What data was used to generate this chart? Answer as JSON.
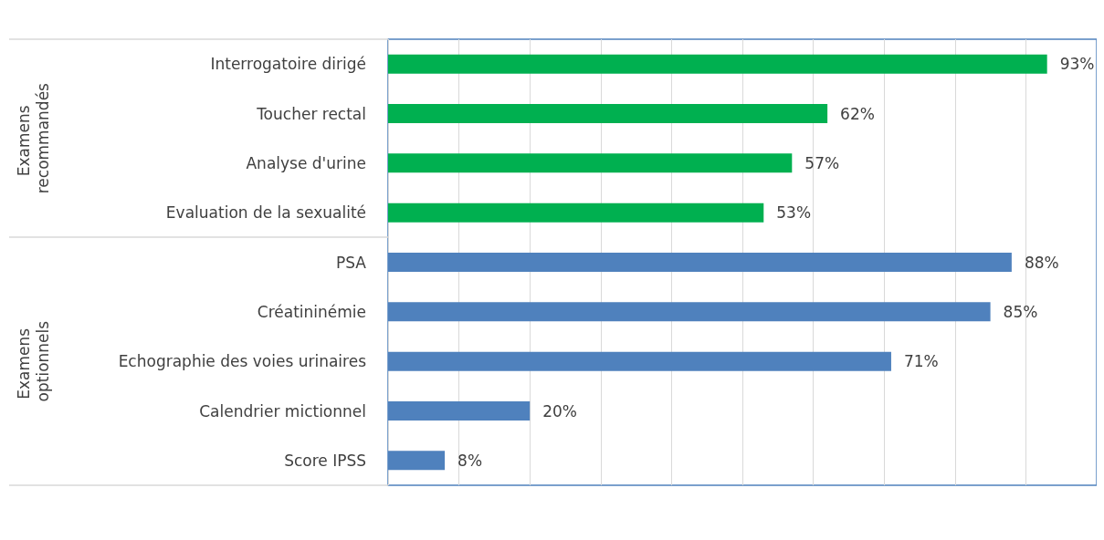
{
  "chart_data": {
    "type": "bar",
    "orientation": "horizontal",
    "categories": [
      "Interrogatoire dirigé",
      "Toucher rectal",
      "Analyse d'urine",
      "Evaluation de la sexualité",
      "PSA",
      "Créatininémie",
      "Echographie des voies urinaires",
      "Calendrier mictionnel",
      "Score IPSS"
    ],
    "series": [
      {
        "color": "#00b050",
        "values": [
          93,
          62,
          57,
          53,
          null,
          null,
          null,
          null,
          null
        ],
        "value_labels": [
          "93%",
          "62%",
          "57%",
          "53%",
          null,
          null,
          null,
          null,
          null
        ]
      },
      {
        "color": "#4f81bd",
        "values": [
          null,
          null,
          null,
          null,
          88,
          85,
          71,
          20,
          8
        ],
        "value_labels": [
          null,
          null,
          null,
          null,
          "88%",
          "85%",
          "71%",
          "20%",
          "8%"
        ]
      }
    ],
    "xlim": [
      0,
      100
    ],
    "xticks": [
      {
        "value": 0,
        "label": null
      },
      {
        "value": 10,
        "label": null
      },
      {
        "value": 20,
        "label": null
      },
      {
        "value": 30,
        "label": null
      },
      {
        "value": 40,
        "label": null
      },
      {
        "value": 50,
        "label": null
      },
      {
        "value": 60,
        "label": null
      },
      {
        "value": 70,
        "label": null
      },
      {
        "value": 80,
        "label": null
      },
      {
        "value": 90,
        "label": null
      },
      {
        "value": 100,
        "label": null
      }
    ],
    "annotations": [
      "Examens recommandés",
      "Examens optionnels"
    ],
    "grid": "x",
    "tick_labels": "y"
  }
}
